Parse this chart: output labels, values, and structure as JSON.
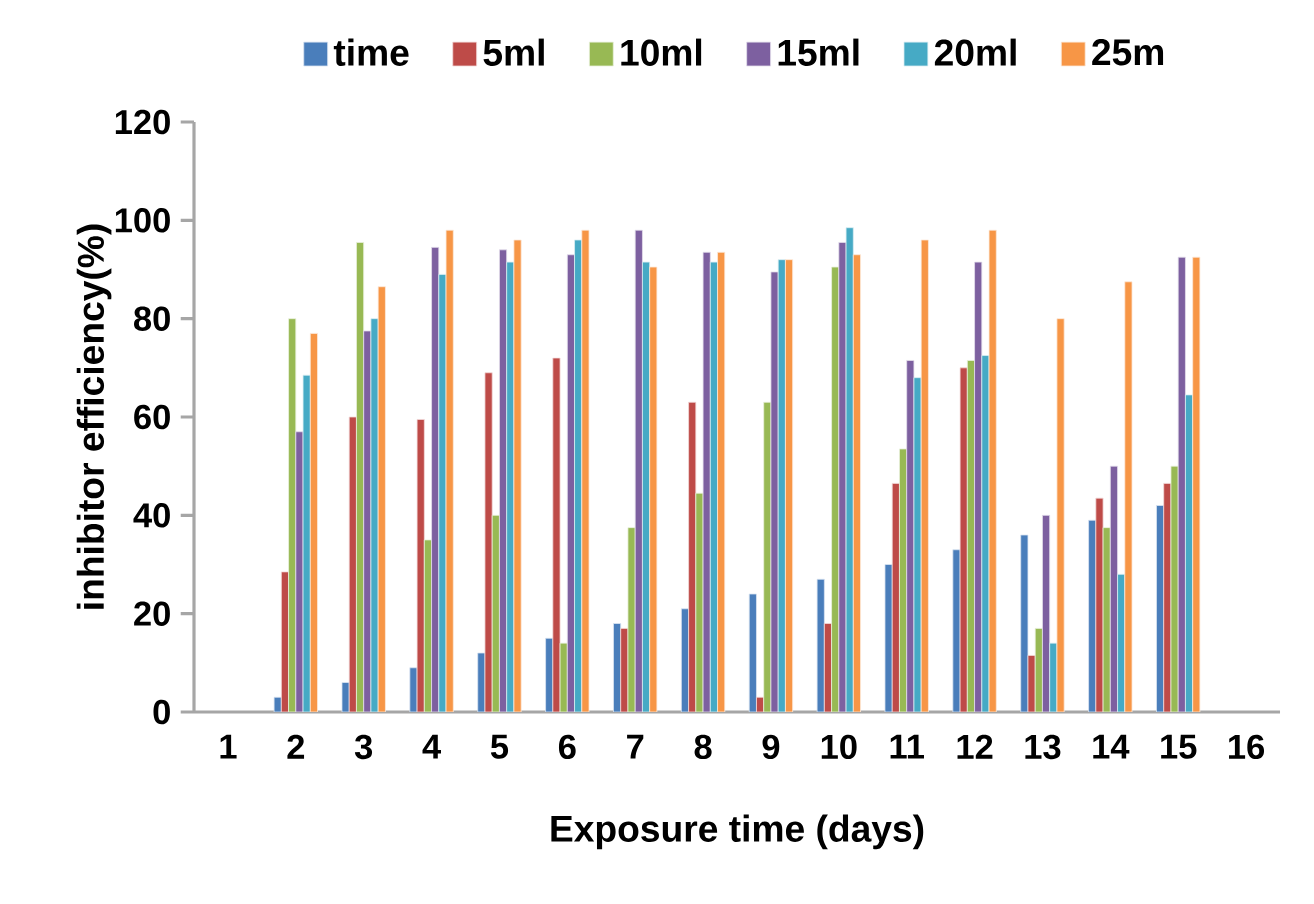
{
  "chart_data": {
    "type": "bar",
    "xlabel": "Exposure time (days)",
    "ylabel": "inhibitor efficiency(%)",
    "categories": [
      "1",
      "2",
      "3",
      "4",
      "5",
      "6",
      "7",
      "8",
      "9",
      "10",
      "11",
      "12",
      "13",
      "14",
      "15",
      "16"
    ],
    "ylim": [
      0,
      120
    ],
    "yticks": [
      0,
      20,
      40,
      60,
      80,
      100,
      120
    ],
    "legend": "top",
    "grid": false,
    "series": [
      {
        "name": "time",
        "color": "#4a7ebb",
        "values": [
          null,
          3,
          6,
          9,
          12,
          15,
          18,
          21,
          24,
          27,
          30,
          33,
          36,
          39,
          42,
          null
        ]
      },
      {
        "name": "5ml",
        "color": "#be4b48",
        "values": [
          null,
          28.5,
          60,
          59.5,
          69,
          72,
          17,
          63,
          3,
          18,
          46.5,
          70,
          11.5,
          43.5,
          46.5,
          null
        ]
      },
      {
        "name": "10ml",
        "color": "#98b954",
        "values": [
          null,
          80,
          95.5,
          35,
          40,
          14,
          37.5,
          44.5,
          63,
          90.5,
          53.5,
          71.5,
          17,
          37.5,
          50,
          null
        ]
      },
      {
        "name": "15ml",
        "color": "#7d60a0",
        "values": [
          null,
          57,
          77.5,
          94.5,
          94,
          93,
          98,
          93.5,
          89.5,
          95.5,
          71.5,
          91.5,
          40,
          50,
          92.5,
          null
        ]
      },
      {
        "name": "20ml",
        "color": "#46aac5",
        "values": [
          null,
          68.5,
          80,
          89,
          91.5,
          96,
          91.5,
          91.5,
          92,
          98.5,
          68,
          72.5,
          14,
          28,
          64.5,
          null
        ]
      },
      {
        "name": "25m",
        "color": "#f79646",
        "values": [
          null,
          77,
          86.5,
          98,
          96,
          98,
          90.5,
          93.5,
          92,
          93,
          96,
          98,
          80,
          87.5,
          92.5,
          null
        ]
      }
    ]
  }
}
